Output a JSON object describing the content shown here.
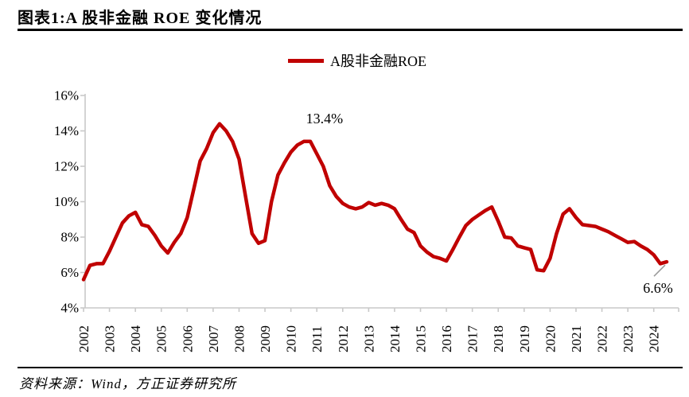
{
  "header": {
    "title": "图表1:A 股非金融 ROE 变化情况"
  },
  "legend": {
    "label": "A股非金融ROE"
  },
  "source": {
    "text": "资料来源：Wind，方正证券研究所"
  },
  "colors": {
    "line": "#c00000",
    "axis": "#c9c9c9",
    "leader": "#9b9b9b",
    "text": "#000000",
    "background": "#ffffff"
  },
  "chart_data": {
    "type": "line",
    "title": "A股非金融ROE",
    "legend_position": "top",
    "grid": false,
    "x_frequency": "quarterly",
    "x_range": [
      "2002Q1",
      "2024Q3"
    ],
    "x_tick_labels": [
      "2002",
      "2003",
      "2004",
      "2005",
      "2006",
      "2007",
      "2008",
      "2009",
      "2010",
      "2011",
      "2012",
      "2013",
      "2014",
      "2015",
      "2016",
      "2017",
      "2018",
      "2019",
      "2020",
      "2021",
      "2022",
      "2023",
      "2024"
    ],
    "y_ticks": [
      16,
      14,
      12,
      10,
      8,
      6,
      4
    ],
    "y_tick_suffix": "%",
    "ylim": [
      4,
      16
    ],
    "series": [
      {
        "name": "A股非金融ROE",
        "unit": "%",
        "values": [
          5.6,
          6.4,
          6.5,
          6.5,
          7.2,
          8.0,
          8.8,
          9.2,
          9.4,
          8.7,
          8.6,
          8.1,
          7.5,
          7.1,
          7.7,
          8.2,
          9.1,
          10.7,
          12.3,
          13.0,
          13.9,
          14.4,
          14.0,
          13.4,
          12.4,
          10.3,
          8.2,
          7.65,
          7.8,
          10.0,
          11.5,
          12.2,
          12.8,
          13.2,
          13.4,
          13.4,
          12.7,
          12.0,
          10.9,
          10.3,
          9.9,
          9.7,
          9.6,
          9.7,
          9.95,
          9.8,
          9.9,
          9.8,
          9.6,
          9.0,
          8.45,
          8.25,
          7.5,
          7.15,
          6.9,
          6.8,
          6.65,
          7.3,
          8.0,
          8.65,
          9.0,
          9.25,
          9.5,
          9.7,
          8.9,
          8.0,
          7.95,
          7.5,
          7.4,
          7.3,
          6.15,
          6.1,
          6.8,
          8.2,
          9.3,
          9.6,
          9.1,
          8.7,
          8.65,
          8.6,
          8.45,
          8.3,
          8.1,
          7.9,
          7.7,
          7.75,
          7.5,
          7.3,
          7.0,
          6.5,
          6.6
        ]
      }
    ],
    "annotations": [
      {
        "text": "13.4%",
        "index": 34,
        "value": 13.4,
        "placement": "above"
      },
      {
        "text": "6.6%",
        "index": 90,
        "value": 6.6,
        "placement": "below-leader"
      }
    ]
  }
}
